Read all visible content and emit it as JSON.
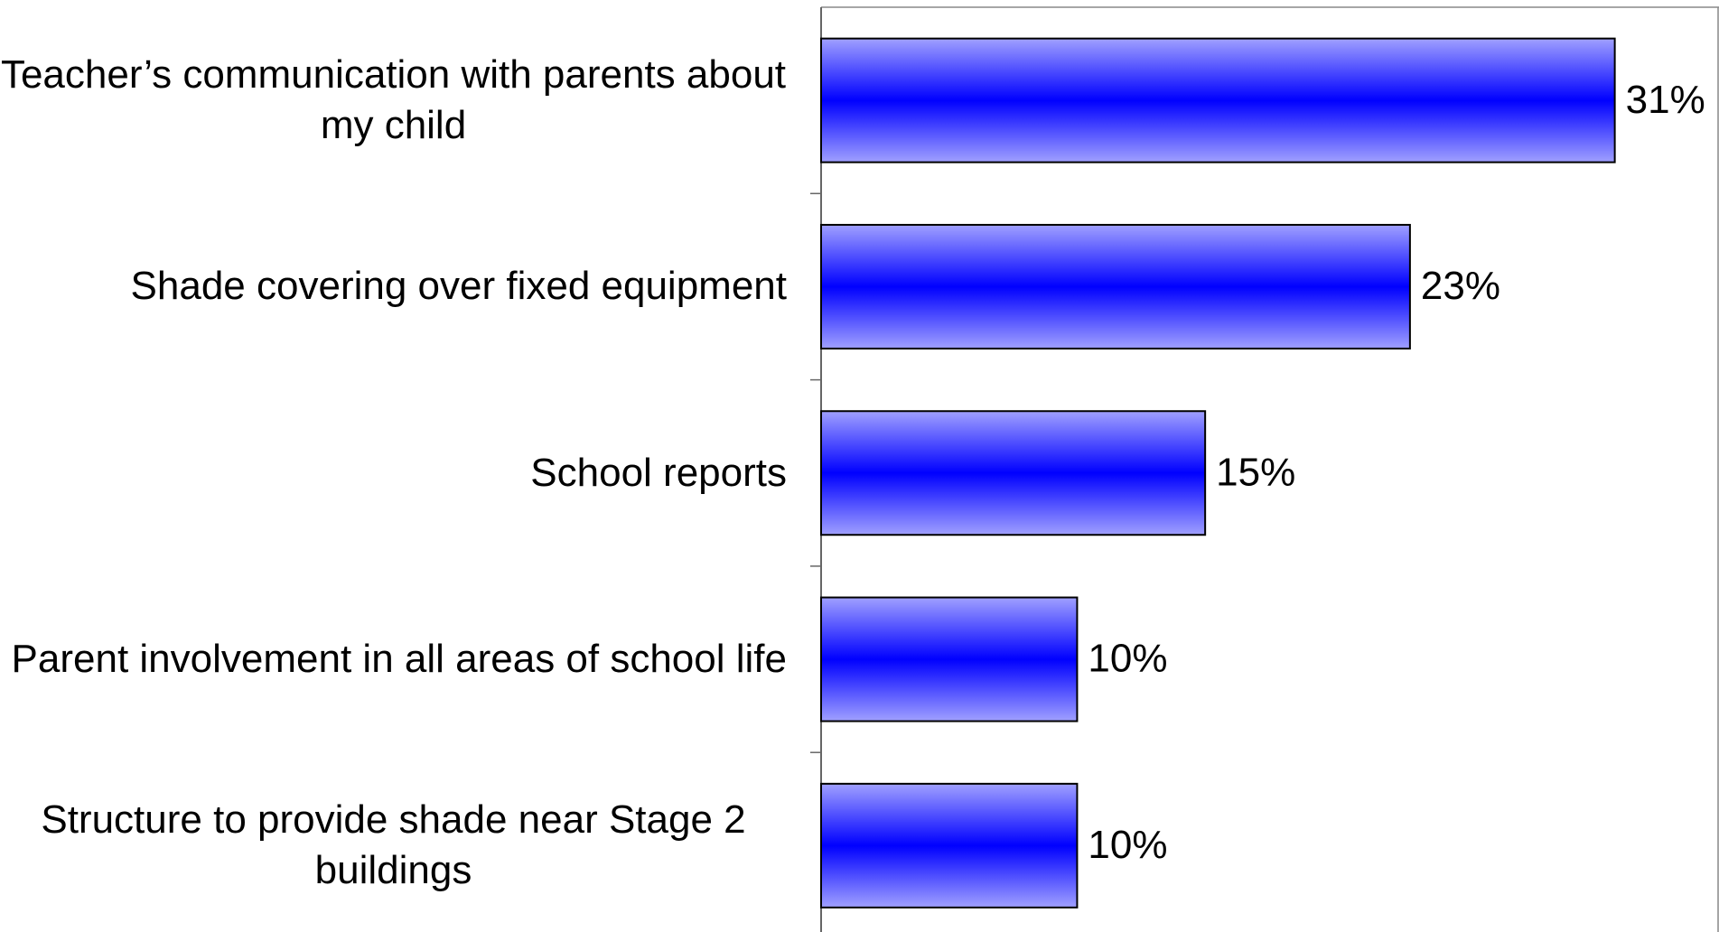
{
  "chart_data": {
    "type": "bar",
    "orientation": "horizontal",
    "categories": [
      "Teacher’s communication with parents about my child",
      "Shade covering over fixed equipment",
      "School reports",
      "Parent involvement in all areas of school life",
      "Structure to provide shade near Stage 2 buildings"
    ],
    "values": [
      31,
      23,
      15,
      10,
      10
    ],
    "value_labels": [
      "31%",
      "23%",
      "15%",
      "10%",
      "10%"
    ],
    "color": "#0000ff",
    "xlim": [
      0,
      35
    ]
  }
}
